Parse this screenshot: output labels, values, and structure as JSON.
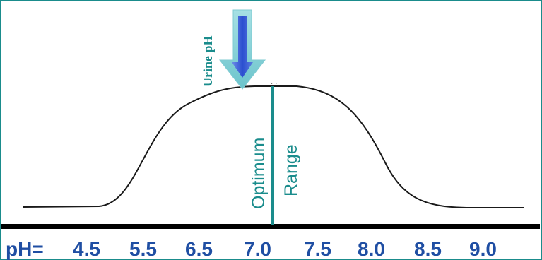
{
  "diagram": {
    "arrow_label": "Urine pH",
    "range_label_left": "Optimum",
    "range_label_right": "Range",
    "axis_prefix": "pH=",
    "ticks": [
      "4.5",
      "5.5",
      "6.5",
      "7.0",
      "7.5",
      "8.0",
      "8.5",
      "9.0"
    ]
  },
  "colors": {
    "frame": "#1a8c8c",
    "curve": "#1a1a1a",
    "baseline": "#000000",
    "optimum_line": "#1a8c8c",
    "axis_text": "#1f4ea3",
    "arrow_outer": "#8fd3d9",
    "arrow_inner": "#3a5fd0"
  }
}
